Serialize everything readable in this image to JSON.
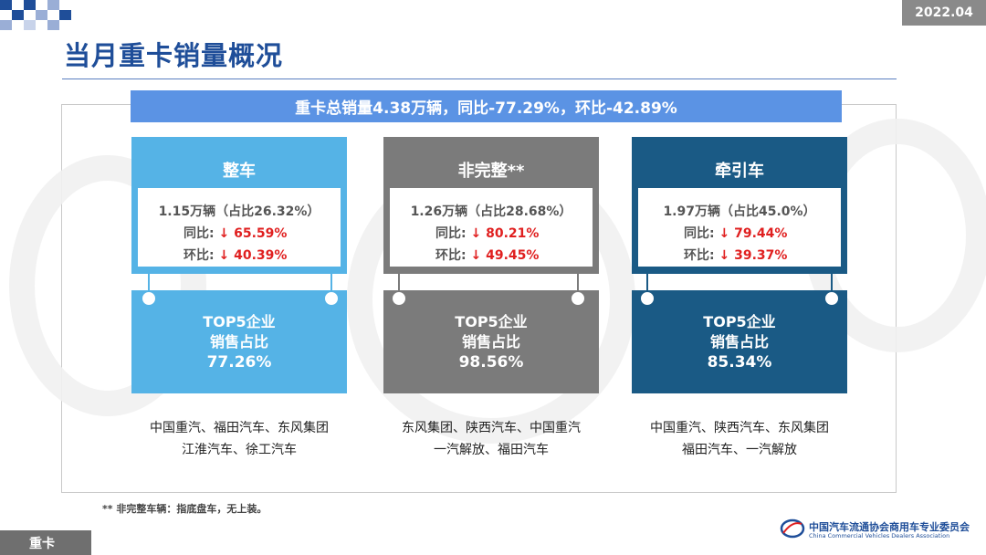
{
  "date_badge": "2022.04",
  "page_title": "当月重卡销量概况",
  "summary": "重卡总销量4.38万辆，同比-77.29%，环比-42.89%",
  "cards": [
    {
      "title": "整车",
      "share": "1.15万辆（占比26.32%）",
      "yoy_label": "同比:",
      "yoy_value": "↓ 65.59%",
      "mom_label": "环比:",
      "mom_value": "↓ 40.39%",
      "top5_line1": "TOP5企业",
      "top5_line2": "销售占比",
      "top5_pct": "77.26%",
      "companies_line1": "中国重汽、福田汽车、东风集团",
      "companies_line2": "江淮汽车、徐工汽车",
      "color": "#55b3e6"
    },
    {
      "title": "非完整**",
      "share": "1.26万辆（占比28.68%）",
      "yoy_label": "同比:",
      "yoy_value": "↓ 80.21%",
      "mom_label": "环比:",
      "mom_value": "↓ 49.45%",
      "top5_line1": "TOP5企业",
      "top5_line2": "销售占比",
      "top5_pct": "98.56%",
      "companies_line1": "东风集团、陕西汽车、中国重汽",
      "companies_line2": "一汽解放、福田汽车",
      "color": "#7b7b7b"
    },
    {
      "title": "牵引车",
      "share": "1.97万辆（占比45.0%）",
      "yoy_label": "同比:",
      "yoy_value": "↓ 79.44%",
      "mom_label": "环比:",
      "mom_value": "↓ 39.37%",
      "top5_line1": "TOP5企业",
      "top5_line2": "销售占比",
      "top5_pct": "85.34%",
      "companies_line1": "中国重汽、陕西汽车、东风集团",
      "companies_line2": "福田汽车、一汽解放",
      "color": "#1a5a85"
    }
  ],
  "footnote": "** 非完整车辆：指底盘车，无上装。",
  "bottom_label": "重卡",
  "logo": {
    "cn": "中国汽车流通协会商用车专业委员会",
    "en": "China Commercial Vehicles Dealers Association"
  }
}
